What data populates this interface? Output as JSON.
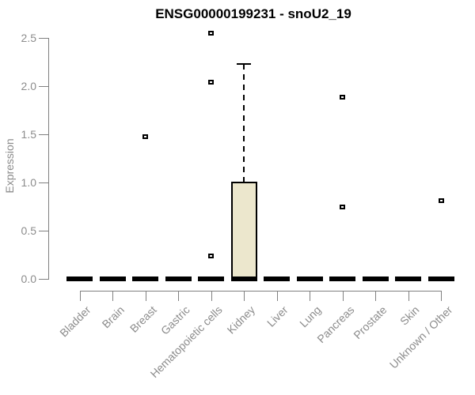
{
  "chart_data": {
    "type": "boxplot",
    "title": "ENSG00000199231 - snoU2_19",
    "xlabel": "",
    "ylabel": "Expression",
    "ylim": [
      0,
      2.5
    ],
    "yticks": [
      0,
      0.5,
      1,
      1.5,
      2,
      2.5
    ],
    "ytick_labels": [
      "0.0",
      "0.5",
      "1.0",
      "1.5",
      "2.0",
      "2.5"
    ],
    "grid": false,
    "legend": null,
    "categories": [
      "Bladder",
      "Brain",
      "Breast",
      "Gastric",
      "Hematopoietic cells",
      "Kidney",
      "Liver",
      "Lung",
      "Pancreas",
      "Prostate",
      "Skin",
      "Unknown / Other"
    ],
    "boxes": [
      {
        "category": "Bladder",
        "whisker_low": 0,
        "q1": 0,
        "median": 0,
        "q3": 0,
        "whisker_high": 0,
        "outliers": []
      },
      {
        "category": "Brain",
        "whisker_low": 0,
        "q1": 0,
        "median": 0,
        "q3": 0,
        "whisker_high": 0,
        "outliers": []
      },
      {
        "category": "Breast",
        "whisker_low": 0,
        "q1": 0,
        "median": 0,
        "q3": 0,
        "whisker_high": 0,
        "outliers": [
          1.48
        ]
      },
      {
        "category": "Gastric",
        "whisker_low": 0,
        "q1": 0,
        "median": 0,
        "q3": 0,
        "whisker_high": 0,
        "outliers": []
      },
      {
        "category": "Hematopoietic cells",
        "whisker_low": 0,
        "q1": 0,
        "median": 0,
        "q3": 0,
        "whisker_high": 0,
        "outliers": [
          2.55,
          2.04,
          0.24
        ]
      },
      {
        "category": "Kidney",
        "whisker_low": 0,
        "q1": 0,
        "median": 0,
        "q3": 1.01,
        "whisker_high": 2.23,
        "outliers": []
      },
      {
        "category": "Liver",
        "whisker_low": 0,
        "q1": 0,
        "median": 0,
        "q3": 0,
        "whisker_high": 0,
        "outliers": []
      },
      {
        "category": "Lung",
        "whisker_low": 0,
        "q1": 0,
        "median": 0,
        "q3": 0,
        "whisker_high": 0,
        "outliers": []
      },
      {
        "category": "Pancreas",
        "whisker_low": 0,
        "q1": 0,
        "median": 0,
        "q3": 0,
        "whisker_high": 0,
        "outliers": [
          1.89,
          0.75
        ]
      },
      {
        "category": "Prostate",
        "whisker_low": 0,
        "q1": 0,
        "median": 0,
        "q3": 0,
        "whisker_high": 0,
        "outliers": []
      },
      {
        "category": "Skin",
        "whisker_low": 0,
        "q1": 0,
        "median": 0,
        "q3": 0,
        "whisker_high": 0,
        "outliers": []
      },
      {
        "category": "Unknown / Other",
        "whisker_low": 0,
        "q1": 0,
        "median": 0,
        "q3": 0,
        "whisker_high": 0,
        "outliers": [
          0.81
        ]
      }
    ],
    "colors": {
      "box_fill": "#ECE7CD",
      "box_border": "#000000",
      "median": "#000000",
      "whisker": "#000000",
      "outlier_border": "#000000",
      "outlier_fill": "#FFFFFF",
      "axis": "#808080",
      "tick_text": "#8C8C8C",
      "title_text": "#000000"
    }
  }
}
